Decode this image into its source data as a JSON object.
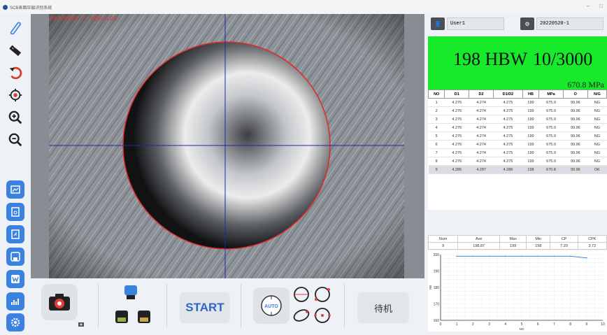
{
  "window": {
    "title": "SCB表面压痕识别系统",
    "minimize": "–",
    "maximize": "□"
  },
  "viewer": {
    "overlay_text": "20220520-1 HBW/198"
  },
  "header": {
    "user": "User1",
    "sample": "20220520-1"
  },
  "result": {
    "hardness": "198 HBW",
    "condition": "10/3000",
    "mpa": "670.8 MPa"
  },
  "table": {
    "columns": [
      "NO",
      "D1",
      "D2",
      "D1/D2",
      "HB",
      "MPa",
      "O",
      "N/G"
    ],
    "rows": [
      [
        "1",
        "4.276",
        "4.274",
        "4.275",
        "199",
        "675.0",
        "99.96",
        "NG"
      ],
      [
        "2",
        "4.276",
        "4.274",
        "4.275",
        "199",
        "675.0",
        "99.96",
        "NG"
      ],
      [
        "3",
        "4.276",
        "4.274",
        "4.275",
        "199",
        "675.0",
        "99.96",
        "NG"
      ],
      [
        "4",
        "4.276",
        "4.274",
        "4.275",
        "199",
        "675.0",
        "99.96",
        "NG"
      ],
      [
        "5",
        "4.276",
        "4.274",
        "4.275",
        "199",
        "675.0",
        "99.96",
        "NG"
      ],
      [
        "6",
        "4.276",
        "4.274",
        "4.275",
        "199",
        "675.0",
        "99.96",
        "NG"
      ],
      [
        "7",
        "4.276",
        "4.274",
        "4.275",
        "199",
        "675.0",
        "99.96",
        "NG"
      ],
      [
        "8",
        "4.276",
        "4.274",
        "4.275",
        "199",
        "675.0",
        "99.96",
        "NG"
      ],
      [
        "9",
        "4.285",
        "4.287",
        "4.286",
        "198",
        "670.8",
        "99.96",
        "OK"
      ]
    ],
    "selected_row": 8
  },
  "stats": {
    "headers": [
      "Num",
      "Ave",
      "Max",
      "Min",
      "CP",
      "CPK"
    ],
    "values": [
      "9",
      "198.87",
      "199",
      "198",
      "7.20",
      "3.72"
    ]
  },
  "bottom": {
    "start_label": "START",
    "auto_label": "AUTO",
    "status": "待机"
  },
  "chart_data": {
    "type": "line",
    "x": [
      1,
      2,
      3,
      4,
      5,
      6,
      7,
      8,
      9
    ],
    "series": [
      {
        "values": [
          199,
          199,
          199,
          199,
          199,
          199,
          199,
          199,
          198
        ]
      }
    ],
    "xlabel": "NO",
    "ylabel": "HB",
    "xlim": [
      0,
      10
    ],
    "ylim": [
      160,
      200
    ],
    "xticks": [
      "0",
      "1",
      "2",
      "3",
      "4",
      "5",
      "6",
      "7",
      "8",
      "9",
      "10"
    ],
    "yticks": [
      "160",
      "170",
      "180",
      "190",
      "200"
    ],
    "line_color": "#3a8fd6",
    "grid": true
  },
  "colors": {
    "accent": "#3b82e0",
    "result_bg": "#17e92b",
    "circle": "#e02a2a",
    "crosshair": "#1a2aa8"
  }
}
